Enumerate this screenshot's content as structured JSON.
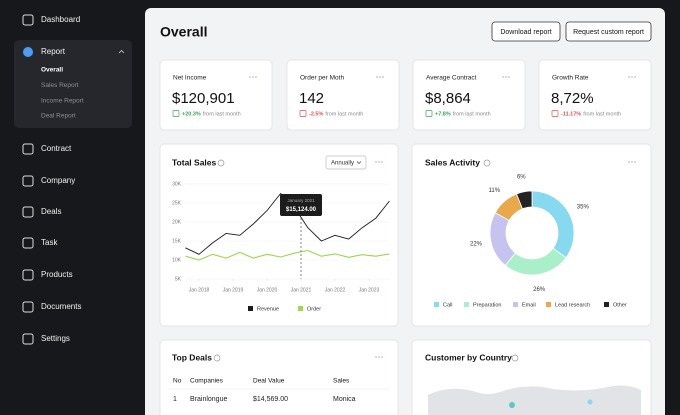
{
  "sidebar": {
    "items": [
      "Dashboard",
      "Report",
      "Contract",
      "Company",
      "Deals",
      "Task",
      "Products",
      "Documents",
      "Settings"
    ],
    "report_submenu": [
      "Overall",
      "Sales Report",
      "Income Report",
      "Deal Report"
    ]
  },
  "header": {
    "title": "Overall",
    "buttons": [
      "Download report",
      "Request custom report"
    ]
  },
  "kpis": [
    {
      "label": "Net Income",
      "value": "$120,901",
      "change": "+20.3%",
      "note": "from last month"
    },
    {
      "label": "Order per Moth",
      "value": "142",
      "change": "-2.5%",
      "note": "from last month"
    },
    {
      "label": "Average Contract",
      "value": "$8,864",
      "change": "+7.8%",
      "note": "from last month"
    },
    {
      "label": "Growth Rate",
      "value": "8,72%",
      "change": "-11.17%",
      "note": "from last month"
    }
  ],
  "chart_data": [
    {
      "type": "line",
      "title": "Total Sales",
      "period": "Annually",
      "x": [
        2017.6,
        2018.0,
        2018.4,
        2018.8,
        2019.2,
        2019.6,
        2020.0,
        2020.4,
        2020.8,
        2021.2,
        2021.6,
        2022.0,
        2022.4,
        2022.8,
        2023.2,
        2023.6
      ],
      "xlim": [
        2017.6,
        2023.6
      ],
      "xticks": [
        {
          "value": 2018,
          "label": "Jan 2018"
        },
        {
          "value": 2019,
          "label": "Jan 2019"
        },
        {
          "value": 2020,
          "label": "Jan 2020"
        },
        {
          "value": 2021,
          "label": "Jan 2021"
        },
        {
          "value": 2022,
          "label": "Jan 2022"
        },
        {
          "value": 2023,
          "label": "Jan 2023"
        }
      ],
      "ylim": [
        5000,
        30000
      ],
      "yticks": [
        {
          "value": 30000,
          "label": "30K"
        },
        {
          "value": 25000,
          "label": "25K"
        },
        {
          "value": 20000,
          "label": "20K"
        },
        {
          "value": 15000,
          "label": "15K"
        },
        {
          "value": 10000,
          "label": "10K"
        },
        {
          "value": 5000,
          "label": "5K"
        }
      ],
      "series": [
        {
          "name": "Revenue",
          "color": "#1c1c1c",
          "values": [
            13200,
            11500,
            14500,
            17000,
            16500,
            19500,
            23000,
            27500,
            24000,
            18500,
            15000,
            16500,
            15500,
            18500,
            21000,
            25500
          ]
        },
        {
          "name": "Order",
          "color": "#9bd84a",
          "values": [
            11000,
            10000,
            11500,
            10500,
            12000,
            10500,
            11500,
            10800,
            11800,
            12500,
            11000,
            11600,
            10700,
            11400,
            11000,
            11600
          ]
        }
      ],
      "tooltip": {
        "title": "January 2021",
        "value": "$15,124.00"
      }
    },
    {
      "type": "pie",
      "title": "Sales Activity",
      "categories": [
        "Call",
        "Preparation",
        "Email",
        "Lead research",
        "Other"
      ],
      "values": [
        35,
        26,
        22,
        11,
        6
      ],
      "value_labels": [
        "35%",
        "26%",
        "22%",
        "11%",
        "6%"
      ],
      "colors": [
        "#86d9ef",
        "#a9efc9",
        "#c6c3f1",
        "#e8a84b",
        "#232323"
      ]
    }
  ],
  "top_deals": {
    "title": "Top Deals",
    "columns": [
      "No",
      "Companies",
      "Deal Value",
      "Sales"
    ],
    "rows": [
      [
        "1",
        "Brainlongue",
        "$14,569.00",
        "Monica"
      ]
    ]
  },
  "map": {
    "title": "Customer by Country"
  }
}
